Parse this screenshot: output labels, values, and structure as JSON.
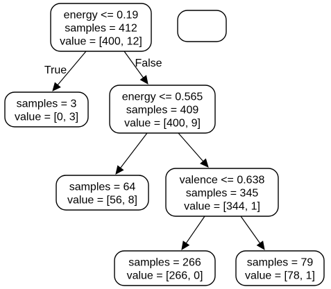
{
  "tree": {
    "nodes": [
      {
        "id": "root",
        "lines": [
          "energy <= 0.19",
          "samples = 412",
          "value = [400, 12]"
        ]
      },
      {
        "id": "blank",
        "lines": []
      },
      {
        "id": "leaf_a",
        "lines": [
          "samples = 3",
          "value = [0, 3]"
        ]
      },
      {
        "id": "split_energy",
        "lines": [
          "energy <= 0.565",
          "samples = 409",
          "value = [400, 9]"
        ]
      },
      {
        "id": "leaf_b",
        "lines": [
          "samples = 64",
          "value = [56, 8]"
        ]
      },
      {
        "id": "split_valence",
        "lines": [
          "valence <= 0.638",
          "samples = 345",
          "value = [344, 1]"
        ]
      },
      {
        "id": "leaf_c",
        "lines": [
          "samples = 266",
          "value = [266, 0]"
        ]
      },
      {
        "id": "leaf_d",
        "lines": [
          "samples = 79",
          "value = [78, 1]"
        ]
      }
    ],
    "edges": [
      {
        "from": "root",
        "to": "leaf_a",
        "label": "True"
      },
      {
        "from": "root",
        "to": "split_energy",
        "label": "False"
      },
      {
        "from": "split_energy",
        "to": "leaf_b",
        "label": ""
      },
      {
        "from": "split_energy",
        "to": "split_valence",
        "label": ""
      },
      {
        "from": "split_valence",
        "to": "leaf_c",
        "label": ""
      },
      {
        "from": "split_valence",
        "to": "leaf_d",
        "label": ""
      }
    ]
  }
}
